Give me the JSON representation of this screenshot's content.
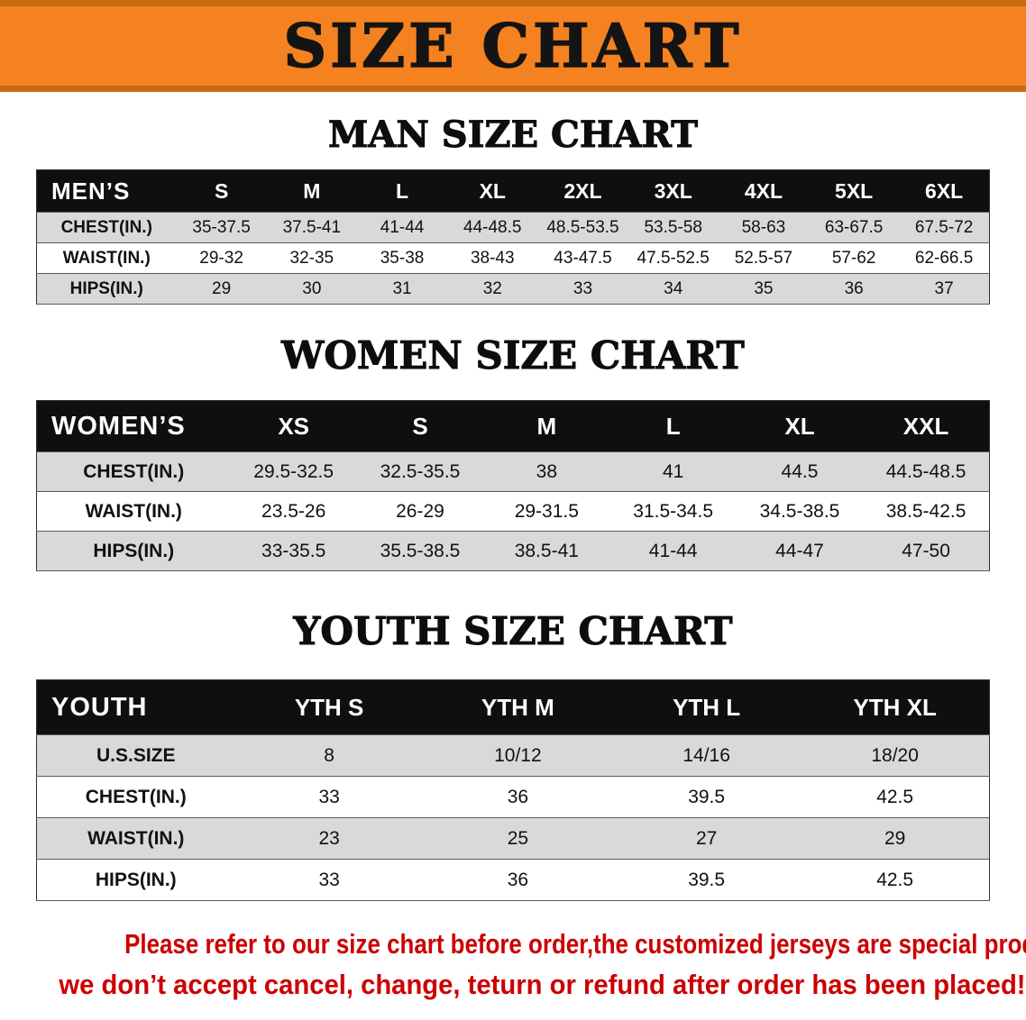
{
  "banner": {
    "title": "SIZE CHART"
  },
  "sections": [
    {
      "id": "men",
      "heading": "MAN SIZE CHART",
      "table": {
        "first_header": "MEN’S",
        "sizes": [
          "S",
          "M",
          "L",
          "XL",
          "2XL",
          "3XL",
          "4XL",
          "5XL",
          "6XL"
        ],
        "rows": [
          {
            "label": "CHEST(IN.)",
            "values": [
              "35-37.5",
              "37.5-41",
              "41-44",
              "44-48.5",
              "48.5-53.5",
              "53.5-58",
              "58-63",
              "63-67.5",
              "67.5-72"
            ]
          },
          {
            "label": "WAIST(IN.)",
            "values": [
              "29-32",
              "32-35",
              "35-38",
              "38-43",
              "43-47.5",
              "47.5-52.5",
              "52.5-57",
              "57-62",
              "62-66.5"
            ]
          },
          {
            "label": "HIPS(IN.)",
            "values": [
              "29",
              "30",
              "31",
              "32",
              "33",
              "34",
              "35",
              "36",
              "37"
            ]
          }
        ]
      }
    },
    {
      "id": "women",
      "heading": "WOMEN SIZE CHART",
      "table": {
        "first_header": "WOMEN’S",
        "sizes": [
          "XS",
          "S",
          "M",
          "L",
          "XL",
          "XXL"
        ],
        "rows": [
          {
            "label": "CHEST(IN.)",
            "values": [
              "29.5-32.5",
              "32.5-35.5",
              "38",
              "41",
              "44.5",
              "44.5-48.5"
            ]
          },
          {
            "label": "WAIST(IN.)",
            "values": [
              "23.5-26",
              "26-29",
              "29-31.5",
              "31.5-34.5",
              "34.5-38.5",
              "38.5-42.5"
            ]
          },
          {
            "label": "HIPS(IN.)",
            "values": [
              "33-35.5",
              "35.5-38.5",
              "38.5-41",
              "41-44",
              "44-47",
              "47-50"
            ]
          }
        ]
      }
    },
    {
      "id": "youth",
      "heading": "YOUTH SIZE CHART",
      "table": {
        "first_header": "YOUTH",
        "sizes": [
          "YTH S",
          "YTH M",
          "YTH L",
          "YTH XL"
        ],
        "rows": [
          {
            "label": "U.S.SIZE",
            "values": [
              "8",
              "10/12",
              "14/16",
              "18/20"
            ]
          },
          {
            "label": "CHEST(IN.)",
            "values": [
              "33",
              "36",
              "39.5",
              "42.5"
            ]
          },
          {
            "label": "WAIST(IN.)",
            "values": [
              "23",
              "25",
              "27",
              "29"
            ]
          },
          {
            "label": "HIPS(IN.)",
            "values": [
              "33",
              "36",
              "39.5",
              "42.5"
            ]
          }
        ]
      }
    }
  ],
  "footer": {
    "lines": [
      "Please refer to our size chart before order,the customized jerseys are special products,",
      "we don’t accept cancel, change, teturn or refund after order has been placed!"
    ]
  },
  "colors": {
    "banner_bg": "#F58220",
    "banner_edge": "#C96A12",
    "header_bg": "#0F0F0F",
    "row_alt": "#D9D9D9",
    "footer_text": "#CC0000"
  }
}
